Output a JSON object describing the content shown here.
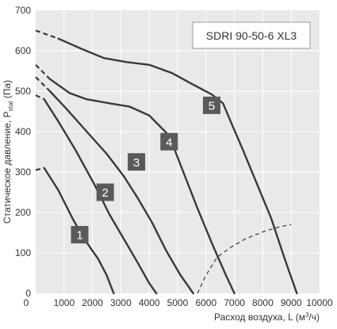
{
  "chart_data": {
    "type": "line",
    "model": "SDRI 90-50-6 XL3",
    "xlabel": "Расход воздуха, L",
    "xunit_prefix": "(м",
    "xunit_sup": "3",
    "xunit_suffix": "/ч)",
    "ylabel": "Статическое давление, P",
    "ylabel_sub": "stat",
    "ylabel_suffix": "(Па)",
    "xlim": [
      0,
      10000
    ],
    "ylim": [
      0,
      700
    ],
    "xticks": [
      0,
      1000,
      2000,
      3000,
      4000,
      5000,
      6000,
      7000,
      8000,
      9000,
      10000
    ],
    "yticks": [
      0,
      100,
      200,
      300,
      400,
      500,
      600,
      700
    ],
    "grid": true,
    "curve_color": "#3a3a3a",
    "boundary_color": "#3a3a3a",
    "badge_color": "#5a5a5a",
    "series": [
      {
        "name": "1",
        "points": [
          [
            0,
            305
          ],
          [
            300,
            310
          ],
          [
            800,
            255
          ],
          [
            1300,
            185
          ],
          [
            1700,
            135
          ],
          [
            2200,
            85
          ],
          [
            2500,
            45
          ],
          [
            2750,
            0
          ]
        ],
        "dashed_until_x": 300,
        "badge": [
          1550,
          145
        ]
      },
      {
        "name": "2",
        "points": [
          [
            0,
            490
          ],
          [
            300,
            480
          ],
          [
            800,
            425
          ],
          [
            1400,
            355
          ],
          [
            2100,
            265
          ],
          [
            2600,
            195
          ],
          [
            3100,
            135
          ],
          [
            3600,
            75
          ],
          [
            4000,
            25
          ],
          [
            4250,
            0
          ]
        ],
        "dashed_until_x": 300,
        "badge": [
          2450,
          250
        ]
      },
      {
        "name": "3",
        "points": [
          [
            0,
            535
          ],
          [
            500,
            500
          ],
          [
            1100,
            455
          ],
          [
            1800,
            400
          ],
          [
            2500,
            345
          ],
          [
            3100,
            290
          ],
          [
            3600,
            235
          ],
          [
            4100,
            175
          ],
          [
            4600,
            105
          ],
          [
            5100,
            45
          ],
          [
            5550,
            0
          ]
        ],
        "dashed_until_x": 500,
        "badge": [
          3550,
          325
        ]
      },
      {
        "name": "4",
        "points": [
          [
            0,
            565
          ],
          [
            500,
            530
          ],
          [
            1200,
            495
          ],
          [
            1800,
            480
          ],
          [
            2600,
            470
          ],
          [
            3300,
            462
          ],
          [
            4000,
            440
          ],
          [
            4700,
            390
          ],
          [
            5200,
            300
          ],
          [
            5700,
            210
          ],
          [
            6200,
            125
          ],
          [
            6700,
            45
          ],
          [
            7000,
            0
          ]
        ],
        "dashed_until_x": 500,
        "badge": [
          4700,
          375
        ]
      },
      {
        "name": "5",
        "points": [
          [
            0,
            650
          ],
          [
            800,
            630
          ],
          [
            1600,
            605
          ],
          [
            2400,
            582
          ],
          [
            3200,
            572
          ],
          [
            4000,
            565
          ],
          [
            4800,
            545
          ],
          [
            5500,
            518
          ],
          [
            6200,
            492
          ],
          [
            6600,
            470
          ],
          [
            6900,
            420
          ],
          [
            7300,
            355
          ],
          [
            7800,
            270
          ],
          [
            8300,
            185
          ],
          [
            8800,
            80
          ],
          [
            9200,
            0
          ]
        ],
        "dashed_until_x": 800,
        "badge": [
          6200,
          465
        ]
      }
    ],
    "efficiency_boundary": {
      "style": "dashed",
      "points": [
        [
          5700,
          0
        ],
        [
          6000,
          45
        ],
        [
          6400,
          90
        ],
        [
          6900,
          115
        ],
        [
          7400,
          135
        ],
        [
          8000,
          152
        ],
        [
          8600,
          165
        ],
        [
          9000,
          170
        ]
      ]
    }
  }
}
